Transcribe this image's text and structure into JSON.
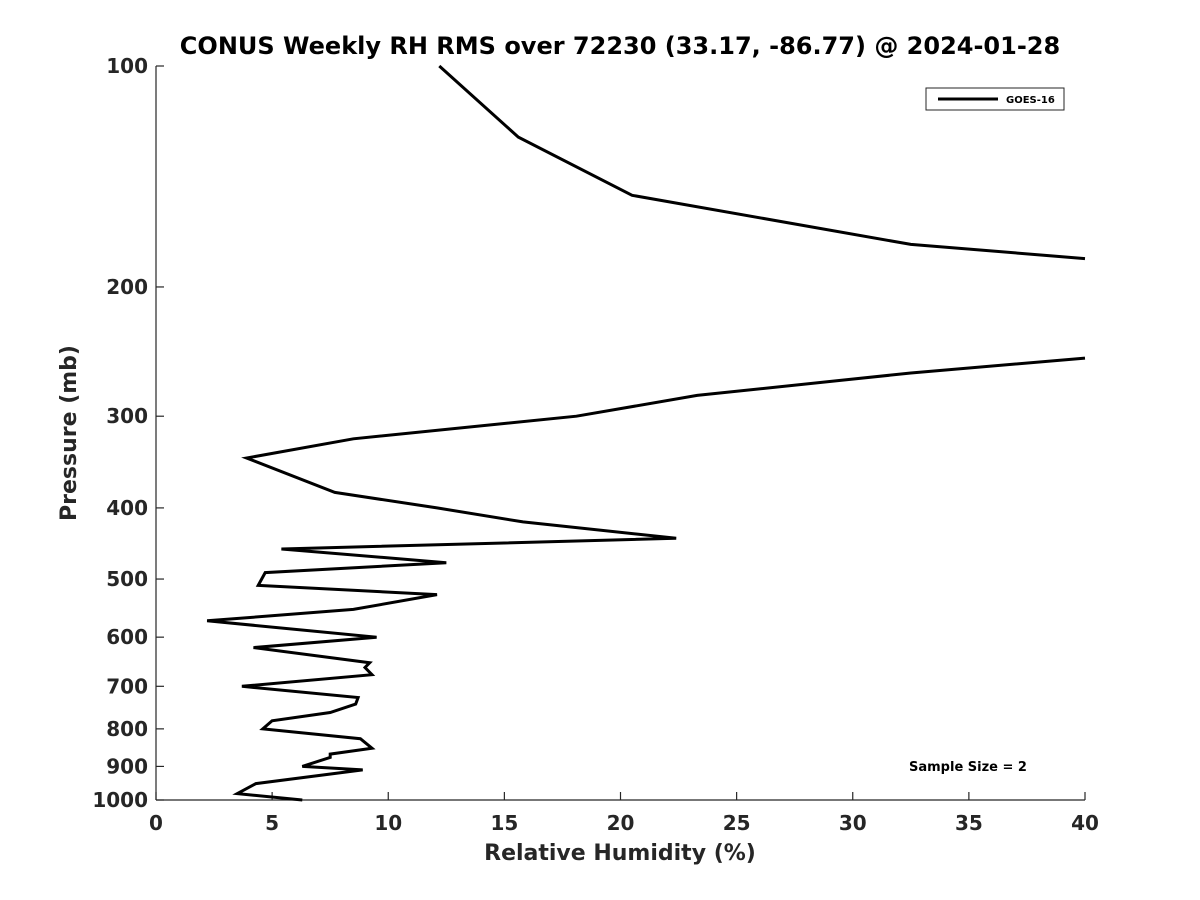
{
  "chart_data": {
    "type": "line",
    "title": "CONUS Weekly RH RMS over 72230 (33.17, -86.77) @ 2024-01-28",
    "xlabel": "Relative Humidity (%)",
    "ylabel": "Pressure (mb)",
    "xlim": [
      0,
      40
    ],
    "ylim": [
      100,
      1000
    ],
    "y_scale": "log",
    "y_reversed": true,
    "x_ticks": [
      "0",
      "5",
      "10",
      "15",
      "20",
      "25",
      "30",
      "35",
      "40"
    ],
    "y_ticks": [
      "100",
      "200",
      "300",
      "400",
      "500",
      "600",
      "700",
      "800",
      "900",
      "1000"
    ],
    "grid": false,
    "legend": {
      "position": "top-right",
      "entries": [
        "GOES-16"
      ]
    },
    "annotations": [
      "Sample Size = 2"
    ],
    "series": [
      {
        "name": "GOES-16",
        "color": "#000000",
        "segments": [
          [
            [
              12.2,
              100
            ],
            [
              15.6,
              125
            ],
            [
              20.5,
              150
            ],
            [
              32.5,
              175
            ],
            [
              40.0,
              183
            ]
          ],
          [
            [
              40.0,
              250
            ],
            [
              32.5,
              262
            ],
            [
              23.3,
              281
            ],
            [
              18.1,
              300
            ],
            [
              8.5,
              322
            ],
            [
              3.9,
              342
            ],
            [
              7.7,
              381
            ],
            [
              12.1,
              400
            ],
            [
              15.8,
              418
            ],
            [
              22.4,
              440
            ],
            [
              5.4,
              455
            ],
            [
              12.5,
              475
            ],
            [
              4.7,
              490
            ],
            [
              4.4,
              510
            ],
            [
              12.1,
              525
            ],
            [
              8.5,
              550
            ],
            [
              2.2,
              570
            ],
            [
              9.5,
              600
            ],
            [
              4.2,
              620
            ],
            [
              9.2,
              650
            ],
            [
              9.0,
              660
            ],
            [
              9.3,
              675
            ],
            [
              3.7,
              700
            ],
            [
              8.7,
              725
            ],
            [
              8.6,
              740
            ],
            [
              7.5,
              760
            ],
            [
              5.0,
              780
            ],
            [
              4.6,
              800
            ],
            [
              8.8,
              825
            ],
            [
              9.3,
              850
            ],
            [
              7.5,
              866
            ],
            [
              7.5,
              875
            ],
            [
              6.3,
              900
            ],
            [
              8.9,
              910
            ],
            [
              4.3,
              950
            ],
            [
              3.5,
              980
            ],
            [
              6.3,
              1000
            ]
          ]
        ]
      }
    ]
  }
}
